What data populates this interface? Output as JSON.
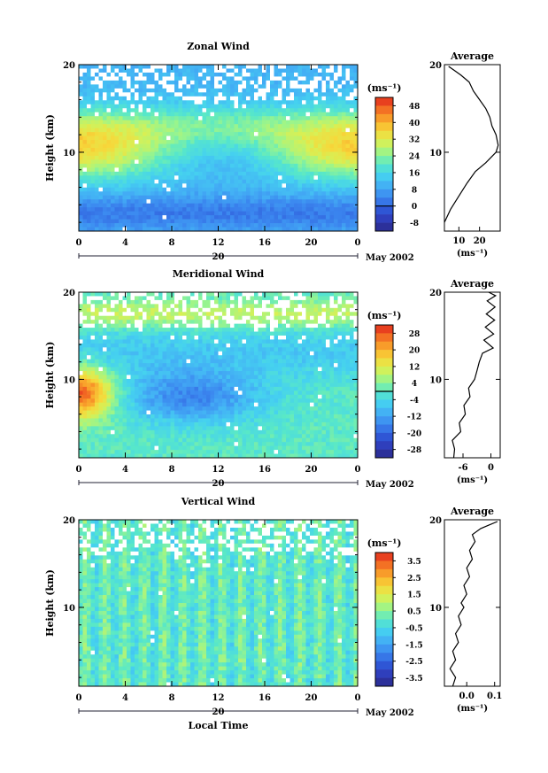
{
  "shared": {
    "x_tick_labels": [
      "0",
      "4",
      "8",
      "12",
      "16",
      "20",
      "0"
    ],
    "day_label": "20",
    "month_label": "May 2002",
    "y_tick_labels": [
      "10",
      "20"
    ],
    "ylabel": "Height (km)",
    "xlabel": "Local Time",
    "unit": "(ms⁻¹)",
    "average_title": "Average"
  },
  "chart_data": [
    {
      "type": "heatmap",
      "title": "Zonal Wind",
      "xlabel": "",
      "ylabel": "Height (km)",
      "xlim": [
        0,
        24
      ],
      "ylim": [
        1,
        20
      ],
      "colorbar": {
        "unit": "(ms⁻¹)",
        "ticks": [
          48,
          40,
          32,
          24,
          16,
          8,
          0,
          -8
        ],
        "range": [
          -12,
          52
        ]
      },
      "zero_contour_in_colorbar": true,
      "profile": {
        "title": "Average",
        "xlabel": "(ms⁻¹)",
        "x_ticks": [
          "10",
          "20"
        ],
        "xlim": [
          3,
          30
        ],
        "points": [
          [
            3,
            2
          ],
          [
            6,
            3.5
          ],
          [
            10,
            5
          ],
          [
            14,
            6.5
          ],
          [
            18,
            7.8
          ],
          [
            23,
            8.8
          ],
          [
            28,
            10
          ],
          [
            29,
            10.8
          ],
          [
            28,
            12
          ],
          [
            26,
            13
          ],
          [
            25,
            14
          ],
          [
            23,
            15
          ],
          [
            20,
            16
          ],
          [
            17,
            17
          ],
          [
            15,
            18
          ],
          [
            11,
            18.8
          ],
          [
            8,
            19.3
          ],
          [
            5,
            19.8
          ]
        ]
      }
    },
    {
      "type": "heatmap",
      "title": "Meridional Wind",
      "xlabel": "",
      "ylabel": "Height (km)",
      "xlim": [
        0,
        24
      ],
      "ylim": [
        1,
        20
      ],
      "colorbar": {
        "unit": "(ms⁻¹)",
        "ticks": [
          28,
          20,
          12,
          4,
          -4,
          -12,
          -20,
          -28
        ],
        "range": [
          -32,
          32
        ]
      },
      "zero_contour_in_colorbar": true,
      "profile": {
        "title": "Average",
        "xlabel": "(ms⁻¹)",
        "x_ticks": [
          "-6",
          "0"
        ],
        "xlim": [
          -10,
          2
        ],
        "points": [
          [
            -8,
            1
          ],
          [
            -7.8,
            2
          ],
          [
            -8.3,
            3
          ],
          [
            -6.5,
            4
          ],
          [
            -6.8,
            5
          ],
          [
            -5.5,
            6
          ],
          [
            -5.8,
            7
          ],
          [
            -4.5,
            8
          ],
          [
            -4.8,
            9
          ],
          [
            -3.5,
            10
          ],
          [
            -3,
            11
          ],
          [
            -2.5,
            12
          ],
          [
            -1.8,
            13
          ],
          [
            0.5,
            13.6
          ],
          [
            -1.5,
            14.5
          ],
          [
            0.6,
            15.2
          ],
          [
            -1.2,
            16
          ],
          [
            0.8,
            16.8
          ],
          [
            -1,
            17.5
          ],
          [
            0.9,
            18.3
          ],
          [
            -0.8,
            19
          ],
          [
            1,
            19.6
          ],
          [
            -0.5,
            20
          ]
        ]
      }
    },
    {
      "type": "heatmap",
      "title": "Vertical Wind",
      "xlabel": "Local Time",
      "ylabel": "Height (km)",
      "xlim": [
        0,
        24
      ],
      "ylim": [
        1,
        20
      ],
      "colorbar": {
        "unit": "(ms⁻¹)",
        "ticks": [
          3.5,
          2.5,
          1.5,
          0.5,
          -0.5,
          -1.5,
          -2.5,
          -3.5
        ],
        "range": [
          -4,
          4
        ]
      },
      "zero_contour_in_colorbar": false,
      "profile": {
        "title": "Average",
        "xlabel": "(ms⁻¹)",
        "x_ticks": [
          "0.0",
          "0.1"
        ],
        "xlim": [
          -0.08,
          0.12
        ],
        "points": [
          [
            -0.05,
            1
          ],
          [
            -0.04,
            2
          ],
          [
            -0.06,
            3
          ],
          [
            -0.04,
            4
          ],
          [
            -0.05,
            5
          ],
          [
            -0.03,
            6
          ],
          [
            -0.04,
            7
          ],
          [
            -0.02,
            8
          ],
          [
            -0.03,
            9
          ],
          [
            -0.01,
            10
          ],
          [
            -0.02,
            10.5
          ],
          [
            0.0,
            11.5
          ],
          [
            -0.01,
            12.5
          ],
          [
            0.01,
            13.5
          ],
          [
            0.0,
            14.5
          ],
          [
            0.02,
            15.5
          ],
          [
            0.01,
            16.5
          ],
          [
            0.03,
            17.5
          ],
          [
            0.02,
            18.3
          ],
          [
            0.05,
            19
          ],
          [
            0.08,
            19.4
          ],
          [
            0.11,
            19.8
          ]
        ]
      }
    }
  ]
}
